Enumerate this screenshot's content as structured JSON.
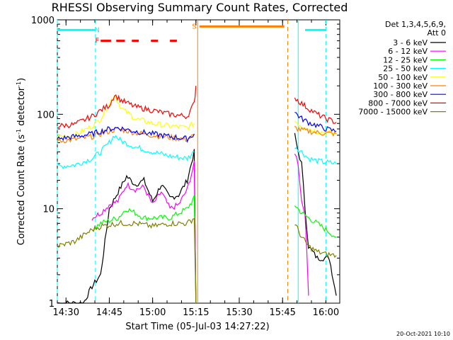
{
  "chart_data": {
    "type": "line",
    "title": "RHESSI Observing Summary Count Rates, Corrected",
    "xlabel": "Start Time (05-Jul-03 14:27:22)",
    "ylabel_main": "Corrected Count Rate (s",
    "ylabel_sup1": "-1",
    "ylabel_mid": " detector",
    "ylabel_sup2": "-1",
    "ylabel_end": ")",
    "yscale": "log",
    "ylim": [
      1,
      1000
    ],
    "xlim_minutes": [
      14.45,
      16.08
    ],
    "x_unit": "hours UT (decimal)",
    "x_ticks": [
      {
        "v": 14.5,
        "label": "14:30"
      },
      {
        "v": 14.75,
        "label": "14:45"
      },
      {
        "v": 15.0,
        "label": "15:00"
      },
      {
        "v": 15.25,
        "label": "15:15"
      },
      {
        "v": 15.5,
        "label": "15:30"
      },
      {
        "v": 15.75,
        "label": "15:45"
      },
      {
        "v": 16.0,
        "label": "16:00"
      }
    ],
    "y_ticks": [
      {
        "v": 1,
        "label": "1"
      },
      {
        "v": 10,
        "label": "10"
      },
      {
        "v": 100,
        "label": "100"
      },
      {
        "v": 1000,
        "label": "1000"
      }
    ],
    "legend_header": [
      "Det 1,3,4,5,6,9,",
      "Att 0"
    ],
    "footer": "20-Oct-2021 10:10",
    "flags": [
      {
        "name": "N",
        "color": "#00ffff",
        "segments": [
          [
            14.45,
            14.67
          ],
          [
            15.88,
            16.0
          ]
        ],
        "level": 780,
        "label_x": 14.68
      },
      {
        "name": "F",
        "color": "#ff0000",
        "segments": [
          [
            14.7,
            14.76
          ],
          [
            14.79,
            14.84
          ],
          [
            14.88,
            14.92
          ],
          [
            14.99,
            15.03
          ],
          [
            15.1,
            15.14
          ]
        ],
        "level": 600,
        "label_x": 14.68
      },
      {
        "name": "S",
        "color": "#ff8000",
        "segments": [
          [
            15.27,
            15.76
          ]
        ],
        "level": 850,
        "label_x": 15.24
      }
    ],
    "markers": [
      {
        "color": "#00ffff",
        "x": 14.45,
        "style": "dashed"
      },
      {
        "color": "#00ffff",
        "x": 14.67,
        "style": "dashed"
      },
      {
        "color": "#ff8000",
        "x": 15.26,
        "style": "solid"
      },
      {
        "color": "#ff8000",
        "x": 15.78,
        "style": "dashed"
      },
      {
        "color": "#00ffff",
        "x": 15.84,
        "style": "solid"
      },
      {
        "color": "#00ffff",
        "x": 16.0,
        "style": "dashed"
      }
    ],
    "series": [
      {
        "name": "3 - 6 keV",
        "color": "#000000",
        "pre": [
          [
            14.45,
            1
          ],
          [
            14.6,
            1
          ],
          [
            14.65,
            1.5
          ],
          [
            14.7,
            2
          ],
          [
            14.75,
            10
          ],
          [
            14.8,
            15
          ],
          [
            14.85,
            22
          ],
          [
            14.9,
            18
          ],
          [
            14.95,
            20
          ],
          [
            15.0,
            12
          ],
          [
            15.05,
            18
          ],
          [
            15.1,
            13
          ],
          [
            15.15,
            14
          ],
          [
            15.2,
            20
          ],
          [
            15.24,
            40
          ],
          [
            15.25,
            1
          ]
        ],
        "post": [
          [
            15.82,
            60
          ],
          [
            15.84,
            40
          ],
          [
            15.86,
            30
          ],
          [
            15.88,
            10
          ],
          [
            15.9,
            4
          ],
          [
            15.95,
            3
          ],
          [
            16.02,
            3
          ],
          [
            16.06,
            1.2
          ]
        ]
      },
      {
        "name": "6 - 12 keV",
        "color": "#ff00ff",
        "pre": [
          [
            14.65,
            8
          ],
          [
            14.7,
            9
          ],
          [
            14.75,
            11
          ],
          [
            14.8,
            12
          ],
          [
            14.85,
            18
          ],
          [
            14.9,
            16
          ],
          [
            14.95,
            17
          ],
          [
            15.0,
            11
          ],
          [
            15.05,
            15
          ],
          [
            15.1,
            10
          ],
          [
            15.15,
            11
          ],
          [
            15.2,
            16
          ],
          [
            15.24,
            30
          ],
          [
            15.25,
            1
          ]
        ],
        "post": [
          [
            15.82,
            40
          ],
          [
            15.84,
            30
          ],
          [
            15.86,
            12
          ],
          [
            15.88,
            9
          ],
          [
            15.9,
            1.2
          ]
        ]
      },
      {
        "name": "12 - 25 keV",
        "color": "#00ff00",
        "pre": [
          [
            14.65,
            6
          ],
          [
            14.7,
            7
          ],
          [
            14.8,
            8
          ],
          [
            14.85,
            10
          ],
          [
            14.9,
            9
          ],
          [
            14.95,
            8
          ],
          [
            15.0,
            8
          ],
          [
            15.1,
            8
          ],
          [
            15.2,
            10
          ],
          [
            15.24,
            13
          ],
          [
            15.25,
            1
          ]
        ],
        "post": [
          [
            15.82,
            11
          ],
          [
            15.86,
            9
          ],
          [
            15.9,
            8
          ],
          [
            15.95,
            7
          ],
          [
            16.0,
            6
          ],
          [
            16.06,
            5
          ]
        ]
      },
      {
        "name": "25 - 50 keV",
        "color": "#00ffff",
        "pre": [
          [
            14.45,
            28
          ],
          [
            14.55,
            29
          ],
          [
            14.65,
            34
          ],
          [
            14.7,
            40
          ],
          [
            14.75,
            50
          ],
          [
            14.78,
            60
          ],
          [
            14.82,
            52
          ],
          [
            14.9,
            45
          ],
          [
            15.0,
            40
          ],
          [
            15.1,
            36
          ],
          [
            15.2,
            34
          ],
          [
            15.24,
            40
          ]
        ],
        "post": [
          [
            15.82,
            46
          ],
          [
            15.86,
            40
          ],
          [
            15.9,
            34
          ],
          [
            15.95,
            32
          ],
          [
            16.0,
            31
          ],
          [
            16.06,
            30
          ]
        ]
      },
      {
        "name": "50 - 100 keV",
        "color": "#ffff00",
        "pre": [
          [
            14.45,
            58
          ],
          [
            14.55,
            60
          ],
          [
            14.65,
            75
          ],
          [
            14.7,
            90
          ],
          [
            14.75,
            130
          ],
          [
            14.78,
            160
          ],
          [
            14.82,
            115
          ],
          [
            14.9,
            90
          ],
          [
            15.0,
            80
          ],
          [
            15.1,
            75
          ],
          [
            15.2,
            72
          ],
          [
            15.24,
            80
          ]
        ],
        "post": [
          [
            15.82,
            85
          ],
          [
            15.86,
            75
          ],
          [
            15.9,
            70
          ],
          [
            15.95,
            66
          ],
          [
            16.0,
            64
          ],
          [
            16.06,
            62
          ]
        ]
      },
      {
        "name": "100 - 300 keV",
        "color": "#ff8000",
        "pre": [
          [
            14.45,
            52
          ],
          [
            14.55,
            54
          ],
          [
            14.65,
            58
          ],
          [
            14.7,
            62
          ],
          [
            14.75,
            66
          ],
          [
            14.8,
            70
          ],
          [
            14.9,
            64
          ],
          [
            15.0,
            60
          ],
          [
            15.1,
            57
          ],
          [
            15.2,
            54
          ],
          [
            15.24,
            60
          ]
        ],
        "post": [
          [
            15.82,
            72
          ],
          [
            15.86,
            68
          ],
          [
            15.9,
            66
          ],
          [
            15.95,
            64
          ],
          [
            16.0,
            63
          ],
          [
            16.06,
            62
          ]
        ]
      },
      {
        "name": "300 - 800 keV",
        "color": "#0000ff",
        "pre": [
          [
            14.45,
            55
          ],
          [
            14.55,
            58
          ],
          [
            14.65,
            62
          ],
          [
            14.7,
            66
          ],
          [
            14.75,
            70
          ],
          [
            14.8,
            72
          ],
          [
            14.9,
            66
          ],
          [
            15.0,
            62
          ],
          [
            15.1,
            58
          ],
          [
            15.2,
            55
          ],
          [
            15.24,
            62
          ]
        ],
        "post": [
          [
            15.82,
            105
          ],
          [
            15.86,
            90
          ],
          [
            15.9,
            82
          ],
          [
            15.95,
            76
          ],
          [
            16.0,
            70
          ],
          [
            16.06,
            66
          ]
        ]
      },
      {
        "name": "800 - 7000 keV",
        "color": "#ff0000",
        "pre": [
          [
            14.45,
            75
          ],
          [
            14.55,
            78
          ],
          [
            14.65,
            95
          ],
          [
            14.7,
            110
          ],
          [
            14.75,
            125
          ],
          [
            14.78,
            160
          ],
          [
            14.82,
            140
          ],
          [
            14.9,
            120
          ],
          [
            15.0,
            110
          ],
          [
            15.1,
            100
          ],
          [
            15.2,
            95
          ],
          [
            15.24,
            130
          ],
          [
            15.25,
            200
          ]
        ],
        "post": [
          [
            15.82,
            150
          ],
          [
            15.86,
            130
          ],
          [
            15.9,
            115
          ],
          [
            15.95,
            100
          ],
          [
            16.0,
            90
          ],
          [
            16.06,
            82
          ]
        ]
      },
      {
        "name": "7000 - 15000 keV",
        "color": "#808000",
        "pre": [
          [
            14.45,
            4
          ],
          [
            14.55,
            4.5
          ],
          [
            14.65,
            6
          ],
          [
            14.7,
            6.5
          ],
          [
            14.8,
            7
          ],
          [
            14.9,
            7
          ],
          [
            15.0,
            6.5
          ],
          [
            15.1,
            7
          ],
          [
            15.2,
            7
          ],
          [
            15.24,
            8
          ],
          [
            15.25,
            1
          ]
        ],
        "post": [
          [
            15.82,
            7
          ],
          [
            15.86,
            5
          ],
          [
            15.9,
            4
          ],
          [
            15.95,
            3.5
          ],
          [
            16.0,
            3.3
          ],
          [
            16.06,
            3.2
          ]
        ]
      }
    ]
  }
}
